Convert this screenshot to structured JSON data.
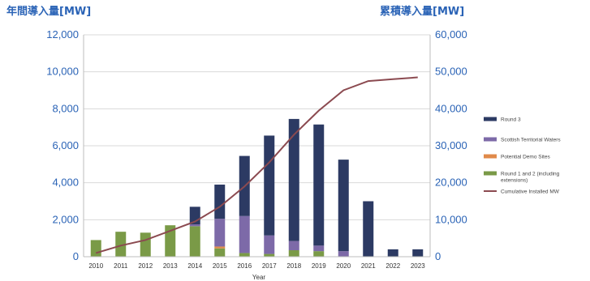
{
  "chart_data": {
    "type": "bar",
    "stacked": true,
    "left_axis_title": "年間導入量[MW]",
    "right_axis_title": "累積導入量[MW]",
    "xlabel": "Year",
    "categories": [
      "2010",
      "2011",
      "2012",
      "2013",
      "2014",
      "2015",
      "2016",
      "2017",
      "2018",
      "2019",
      "2020",
      "2021",
      "2022",
      "2023"
    ],
    "ylim_left": [
      0,
      12000
    ],
    "ylim_right": [
      0,
      60000
    ],
    "yticks_left": [
      "0",
      "2,000",
      "4,000",
      "6,000",
      "8,000",
      "10,000",
      "12,000"
    ],
    "yticks_right": [
      "0",
      "10,000",
      "20,000",
      "30,000",
      "40,000",
      "50,000",
      "60,000"
    ],
    "grid": true,
    "legend_position": "right",
    "series": [
      {
        "name": "Round 1 and 2 (including extensions)",
        "color": "#7a9a47",
        "axis": "left",
        "values": [
          900,
          1350,
          1300,
          1700,
          1650,
          450,
          200,
          150,
          350,
          300,
          0,
          0,
          0,
          0
        ]
      },
      {
        "name": "Potential Demo Sites",
        "color": "#e08a4a",
        "axis": "left",
        "values": [
          0,
          0,
          0,
          0,
          0,
          100,
          0,
          0,
          0,
          0,
          0,
          0,
          0,
          0
        ]
      },
      {
        "name": "Scottish Territorial Waters",
        "color": "#7d6aa8",
        "axis": "left",
        "values": [
          0,
          0,
          0,
          0,
          100,
          1500,
          2000,
          1000,
          500,
          300,
          300,
          0,
          0,
          0
        ]
      },
      {
        "name": "Round 3",
        "color": "#2c3a63",
        "axis": "left",
        "values": [
          0,
          0,
          0,
          0,
          950,
          1850,
          3250,
          5400,
          6600,
          6550,
          4950,
          3000,
          400,
          400
        ]
      },
      {
        "name": "Cumulative Installed MW",
        "type": "line",
        "color": "#8b4a50",
        "axis": "right",
        "values": [
          1000,
          3000,
          4500,
          7000,
          9500,
          13500,
          19000,
          25500,
          33000,
          39500,
          45000,
          47500,
          48000,
          48500
        ]
      }
    ],
    "legend_order": [
      "Round 3",
      "Scottish Territorial Waters",
      "Potential Demo Sites",
      "Round 1 and 2 (including extensions)",
      "Cumulative Installed MW"
    ],
    "legend_lines": {
      "Round 1 and 2 (including extensions)": [
        "Round 1 and 2 (including",
        "extensions)"
      ]
    },
    "colors": {
      "left_axis_title": "#2a63b6",
      "tick_left": "#2a63b6",
      "tick_right": "#2a63b6",
      "grid": "#d9d9d9",
      "axis_line": "#bdbdbd"
    }
  }
}
